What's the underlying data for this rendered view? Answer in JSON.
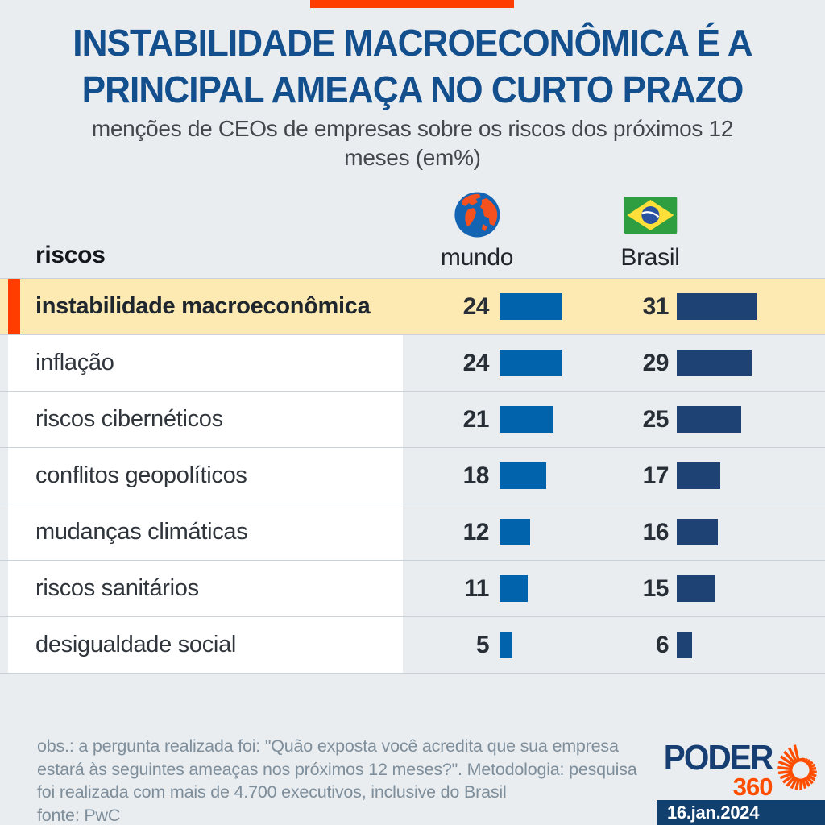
{
  "header": {
    "title_line1": "INSTABILIDADE MACROECONÔMICA É A",
    "title_line2": "PRINCIPAL AMEAÇA NO CURTO PRAZO",
    "subtitle_line1": "menções de CEOs de empresas sobre os riscos dos próximos 12",
    "subtitle_line2": "meses (em%)"
  },
  "table": {
    "risks_header": "riscos",
    "world_header": "mundo",
    "brazil_header": "Brasil"
  },
  "chart_data": {
    "type": "bar",
    "title": "INSTABILIDADE MACROECONÔMICA É A PRINCIPAL AMEAÇA NO CURTO PRAZO",
    "subtitle": "menções de CEOs de empresas sobre os riscos dos próximos 12 meses (em%)",
    "categories": [
      "instabilidade macroeconômica",
      "inflação",
      "riscos cibernéticos",
      "conflitos geopolíticos",
      "mudanças climáticas",
      "riscos sanitários",
      "desigualdade social"
    ],
    "series": [
      {
        "name": "mundo",
        "color": "#0063AC",
        "values": [
          24,
          24,
          21,
          18,
          12,
          11,
          5
        ]
      },
      {
        "name": "Brasil",
        "color": "#1D4273",
        "values": [
          31,
          29,
          25,
          17,
          16,
          15,
          6
        ]
      }
    ],
    "unit": "%",
    "highlight_index": 0,
    "value_range": [
      0,
      31
    ],
    "legend_position": "top",
    "grid": false
  },
  "footer": {
    "note_lines": [
      "obs.: a pergunta realizada foi: \"Quão exposta você acredita que sua empresa",
      "estará às seguintes ameaças nos próximos 12 meses?\". Metodologia: pesquisa",
      "foi realizada com mais de 4.700 executivos, inclusive do Brasil",
      "fonte: PwC"
    ],
    "brand_name": "PODER",
    "brand_360": "360",
    "date": "16.jan.2024"
  },
  "colors": {
    "background": "#E9EDF0",
    "accent_orange": "#FF3D00",
    "highlight_row_bg": "#FDE9B2",
    "title_navy": "#134E8D",
    "world_bar": "#0063AC",
    "brazil_bar": "#1D4273",
    "separator": "#C9D2D8",
    "footer_text": "#7E8E9B",
    "brand_navy": "#163E73",
    "brand_orange": "#FF4D00",
    "date_badge_bg": "#11406F"
  }
}
